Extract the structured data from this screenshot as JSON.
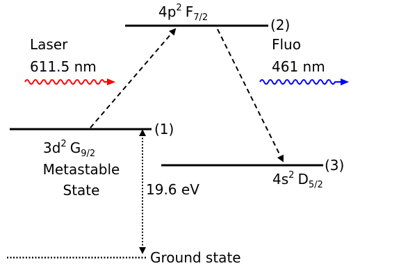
{
  "levels": {
    "level2": {
      "orbital": "4p",
      "superscript": "2",
      "term": "F",
      "subscript": "7/2",
      "index": "(2)"
    },
    "level1": {
      "orbital": "3d",
      "superscript": "2",
      "term": "G",
      "subscript": "9/2",
      "line2": "Metastable",
      "line3": "State",
      "index": "(1)"
    },
    "level3": {
      "orbital": "4s",
      "superscript": "2",
      "term": "D",
      "subscript": "5/2",
      "index": "(3)"
    },
    "ground": {
      "label": "Ground state"
    }
  },
  "energy_gap": "19.6 eV",
  "laser": {
    "name": "Laser",
    "wavelength": "611.5 nm",
    "color": "#ff0000"
  },
  "fluorescence": {
    "name": "Fluo",
    "wavelength": "461 nm",
    "color": "#0000ff"
  },
  "icons": {
    "laser_wave": "wavy-arrow-icon",
    "fluo_wave": "wavy-arrow-icon"
  }
}
